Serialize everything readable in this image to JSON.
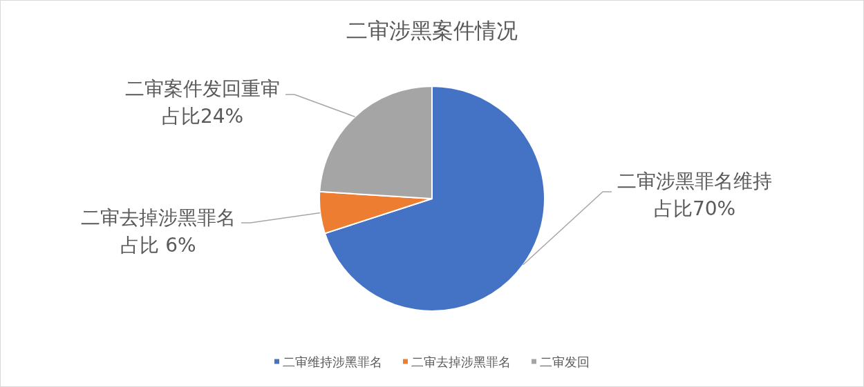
{
  "chart_data": {
    "type": "pie",
    "title": "二审涉黑案件情况",
    "categories": [
      "二审维持涉黑罪名",
      "二审去掉涉黑罪名",
      "二审发回"
    ],
    "values": [
      70,
      6,
      24
    ],
    "colors": [
      "#4472c4",
      "#ed7d31",
      "#a5a5a5"
    ],
    "value_labels": [
      "二审涉黑罪名维持占比70%",
      "二审去掉涉黑罪名占比 6%",
      "二审案件发回重审占比24%"
    ],
    "legend": "bottom"
  }
}
